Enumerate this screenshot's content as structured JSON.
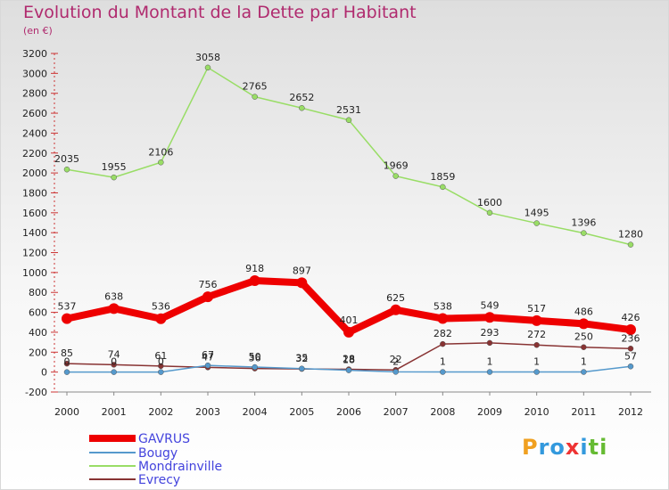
{
  "title": "Evolution du Montant de la Dette par Habitant",
  "subtitle": "(en €)",
  "logo": "Proxiti",
  "chart_data": {
    "type": "line",
    "x": [
      "2000",
      "2001",
      "2002",
      "2003",
      "2004",
      "2005",
      "2006",
      "2007",
      "2008",
      "2009",
      "2010",
      "2011",
      "2012"
    ],
    "ylim": [
      -200,
      3200
    ],
    "yticks": [
      -200,
      0,
      200,
      400,
      600,
      800,
      1000,
      1200,
      1400,
      1600,
      1800,
      2000,
      2200,
      2400,
      2600,
      2800,
      3000,
      3200
    ],
    "grid": false,
    "legend_position": "bottom-left",
    "series": [
      {
        "name": "GAVRUS",
        "color": "#ee0000",
        "values": [
          537,
          638,
          536,
          756,
          918,
          897,
          401,
          625,
          538,
          549,
          517,
          486,
          426
        ]
      },
      {
        "name": "Bougy",
        "color": "#5599cc",
        "values": [
          0,
          0,
          0,
          67,
          50,
          35,
          18,
          2,
          1,
          1,
          1,
          1,
          57
        ]
      },
      {
        "name": "Mondrainville",
        "color": "#99dd66",
        "values": [
          2035,
          1955,
          2106,
          3058,
          2765,
          2652,
          2531,
          1969,
          1859,
          1600,
          1495,
          1396,
          1280
        ]
      },
      {
        "name": "Evrecy",
        "color": "#883333",
        "values": [
          85,
          74,
          61,
          47,
          36,
          32,
          28,
          22,
          282,
          293,
          272,
          250,
          236
        ]
      }
    ]
  }
}
